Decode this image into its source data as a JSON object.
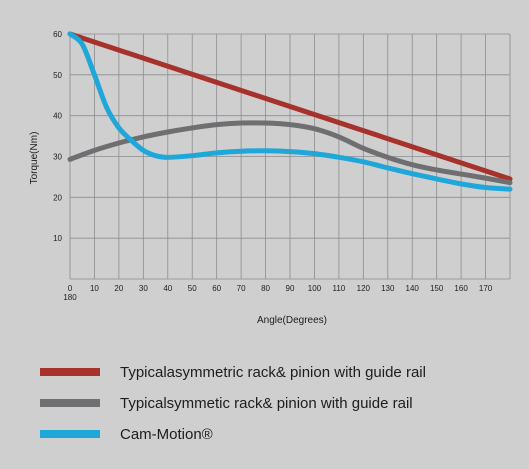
{
  "chart_data": {
    "type": "line",
    "xlabel": "Angle(Degrees)",
    "ylabel": "Torque(Nm)",
    "xlim": [
      0,
      180
    ],
    "ylim": [
      0,
      60
    ],
    "y_ticks": [
      "10",
      "20",
      "30",
      "40",
      "50",
      "60"
    ],
    "x_ticks": [
      {
        "value": 0,
        "label": "0"
      },
      {
        "value": 10,
        "label": "10"
      },
      {
        "value": 20,
        "label": "20"
      },
      {
        "value": 30,
        "label": "30"
      },
      {
        "value": 40,
        "label": "40"
      },
      {
        "value": 50,
        "label": "50"
      },
      {
        "value": 60,
        "label": "60"
      },
      {
        "value": 70,
        "label": "70"
      },
      {
        "value": 80,
        "label": "80"
      },
      {
        "value": 90,
        "label": "90"
      },
      {
        "value": 100,
        "label": "100"
      },
      {
        "value": 110,
        "label": "110"
      },
      {
        "value": 120,
        "label": "120"
      },
      {
        "value": 130,
        "label": "130"
      },
      {
        "value": 140,
        "label": "140"
      },
      {
        "value": 150,
        "label": "150"
      },
      {
        "value": 160,
        "label": "160"
      },
      {
        "value": 170,
        "label": "170"
      }
    ],
    "x_end_label": "180",
    "grid": true,
    "series": [
      {
        "name": "Typicalasymmetric rack& pinion with  guide rail",
        "color": "#a6322b",
        "x": [
          0,
          180
        ],
        "y": [
          60,
          24.5
        ]
      },
      {
        "name": "Typicalsymmetic rack& pinion with  guide rail",
        "color": "#6f6f72",
        "x": [
          0,
          10,
          20,
          30,
          40,
          50,
          60,
          70,
          80,
          90,
          100,
          110,
          120,
          130,
          140,
          150,
          160,
          170,
          180
        ],
        "y": [
          29.3,
          31.5,
          33.3,
          34.8,
          36.0,
          37.0,
          37.8,
          38.2,
          38.2,
          37.8,
          36.8,
          34.8,
          32.0,
          29.8,
          28.0,
          26.7,
          25.7,
          24.7,
          23.6
        ]
      },
      {
        "name": "Cam-Motion®",
        "color": "#1fa7d9",
        "x": [
          0,
          5,
          10,
          15,
          20,
          25,
          30,
          35,
          40,
          50,
          60,
          70,
          80,
          90,
          100,
          110,
          120,
          130,
          140,
          150,
          160,
          170,
          180
        ],
        "y": [
          60,
          57.5,
          50,
          42,
          37,
          34,
          31.5,
          30.2,
          29.8,
          30.2,
          30.9,
          31.3,
          31.4,
          31.2,
          30.7,
          29.8,
          28.7,
          27.2,
          25.8,
          24.5,
          23.3,
          22.4,
          22.0
        ]
      }
    ]
  }
}
